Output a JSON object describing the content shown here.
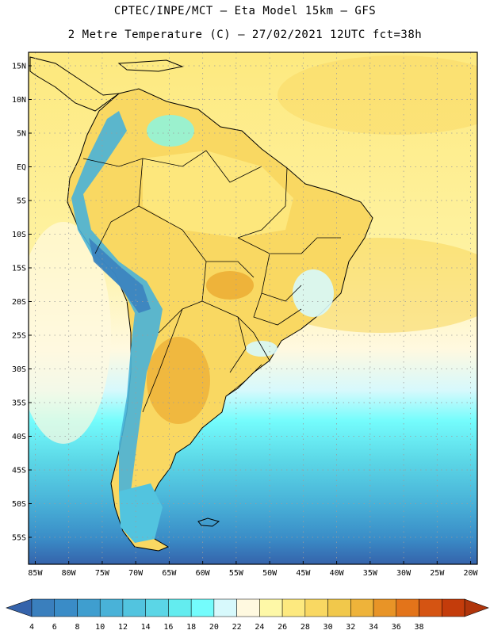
{
  "header": {
    "title": "CPTEC/INPE/MCT –  Eta Model 15km – GFS",
    "subtitle": "2 Metre Temperature (C) – 27/02/2021 12UTC fct=38h"
  },
  "map": {
    "lon_range": [
      -86,
      -19
    ],
    "lat_range": [
      -59,
      17
    ],
    "lat_labels": [
      "15N",
      "10N",
      "5N",
      "EQ",
      "5S",
      "10S",
      "15S",
      "20S",
      "25S",
      "30S",
      "35S",
      "40S",
      "45S",
      "50S",
      "55S"
    ],
    "lat_values": [
      15,
      10,
      5,
      0,
      -5,
      -10,
      -15,
      -20,
      -25,
      -30,
      -35,
      -40,
      -45,
      -50,
      -55
    ],
    "lon_labels": [
      "85W",
      "80W",
      "75W",
      "70W",
      "65W",
      "60W",
      "55W",
      "50W",
      "45W",
      "40W",
      "35W",
      "30W",
      "25W",
      "20W"
    ],
    "lon_values": [
      -85,
      -80,
      -75,
      -70,
      -65,
      -60,
      -55,
      -50,
      -45,
      -40,
      -35,
      -30,
      -25,
      -20
    ]
  },
  "colorbar": {
    "labels": [
      "4",
      "6",
      "8",
      "10",
      "12",
      "14",
      "16",
      "18",
      "20",
      "22",
      "24",
      "26",
      "28",
      "30",
      "32",
      "34",
      "36",
      "38"
    ],
    "colors": [
      "#3a7fbd",
      "#3a8cc7",
      "#3f9ecf",
      "#49b2d8",
      "#52c4df",
      "#5bd6e6",
      "#63ecef",
      "#74fcfc",
      "#d7f9fc",
      "#fff9e0",
      "#fef8a7",
      "#fde97f",
      "#f9d862",
      "#f1c84b",
      "#eeb33a",
      "#e89427",
      "#e3741a",
      "#d55412",
      "#c43c0b"
    ],
    "under_color": "#3563ab",
    "over_color": "#b0350b"
  }
}
